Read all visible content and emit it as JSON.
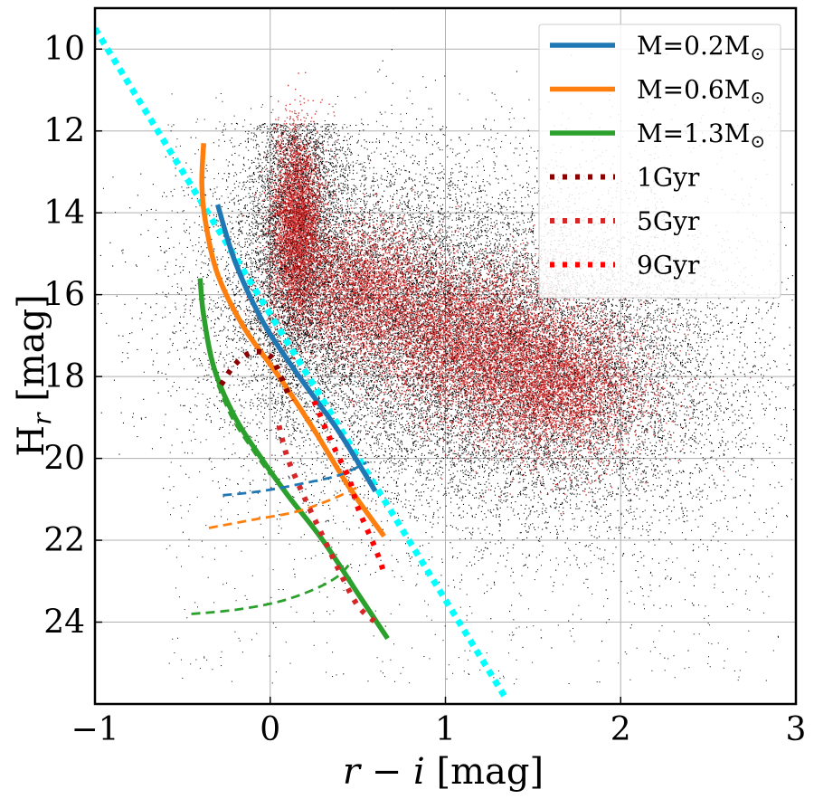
{
  "chart_data": {
    "type": "scatter",
    "title": "",
    "xlabel_main": "r − i",
    "xlabel_unit": " [mag]",
    "ylabel_main": "H",
    "ylabel_sub": "r",
    "ylabel_unit": " [mag]",
    "xlim": [
      -1,
      3
    ],
    "ylim": [
      26,
      9
    ],
    "xticks": [
      -1,
      0,
      1,
      2,
      3
    ],
    "yticks": [
      10,
      12,
      14,
      16,
      18,
      20,
      22,
      24
    ],
    "grid": true,
    "legend_position": "top-right",
    "colors": {
      "background_points": "#000000",
      "density": "#cc0000",
      "reference_line": "#00ffff",
      "m02": "#1f77b4",
      "m06": "#ff7f0e",
      "m13": "#2ca02c",
      "gyr1": "#8b0000",
      "gyr5": "#d62728",
      "gyr9": "#ff0000"
    },
    "density_cloud": {
      "description": "Dense cloud of observed objects in the colour-magnitude plane",
      "core": [
        {
          "x": 0.15,
          "y": 14.2,
          "sx": 0.08,
          "sy": 1.2,
          "weight": 0.22
        },
        {
          "x": 0.5,
          "y": 15.8,
          "sx": 0.25,
          "sy": 0.9,
          "weight": 0.2
        },
        {
          "x": 1.1,
          "y": 17.0,
          "sx": 0.35,
          "sy": 1.0,
          "weight": 0.3
        },
        {
          "x": 1.6,
          "y": 18.2,
          "sx": 0.3,
          "sy": 1.0,
          "weight": 0.28
        }
      ]
    },
    "reference_line": {
      "name": "cyan dotted",
      "x": [
        -1.0,
        1.35
      ],
      "y": [
        9.5,
        25.9
      ]
    },
    "series": [
      {
        "name": "M=0.2M⊙",
        "label_main": "M=0.2M",
        "style": "solid",
        "x": [
          -0.3,
          -0.2,
          -0.05,
          0.1,
          0.25,
          0.4,
          0.6
        ],
        "y": [
          13.8,
          15.2,
          16.6,
          17.6,
          18.5,
          19.4,
          20.8
        ]
      },
      {
        "name": "M=0.6M⊙",
        "label_main": "M=0.6M",
        "style": "solid",
        "x": [
          -0.38,
          -0.39,
          -0.37,
          -0.3,
          -0.15,
          0.05,
          0.25,
          0.45,
          0.65
        ],
        "y": [
          12.3,
          13.3,
          14.2,
          15.5,
          16.8,
          18.0,
          19.3,
          20.7,
          21.9
        ]
      },
      {
        "name": "M=1.3M⊙",
        "label_main": "M=1.3M",
        "style": "solid",
        "x": [
          -0.4,
          -0.38,
          -0.32,
          -0.2,
          -0.05,
          0.1,
          0.3,
          0.5,
          0.67
        ],
        "y": [
          15.6,
          16.5,
          17.8,
          19.0,
          20.0,
          20.9,
          22.0,
          23.3,
          24.4
        ]
      },
      {
        "name": "M=0.2M⊙ (pre-sequence)",
        "legend": false,
        "style": "dashed",
        "color_key": "m02",
        "x": [
          -0.27,
          -0.05,
          0.2,
          0.4,
          0.55
        ],
        "y": [
          20.9,
          20.8,
          20.6,
          20.4,
          20.1
        ]
      },
      {
        "name": "M=0.6M⊙ (pre-sequence)",
        "legend": false,
        "style": "dashed",
        "color_key": "m06",
        "x": [
          -0.35,
          -0.1,
          0.15,
          0.35,
          0.5
        ],
        "y": [
          21.7,
          21.5,
          21.3,
          21.0,
          20.7
        ]
      },
      {
        "name": "M=1.3M⊙ (pre-sequence)",
        "legend": false,
        "style": "dashed",
        "color_key": "m13",
        "x": [
          -0.45,
          -0.2,
          0.05,
          0.25,
          0.38,
          0.45
        ],
        "y": [
          23.8,
          23.7,
          23.5,
          23.2,
          22.9,
          22.6
        ]
      },
      {
        "name": "M=1.3M⊙ (track upper)",
        "legend": false,
        "style": "dashed",
        "color_key": "m13",
        "x": [
          -0.3,
          -0.22,
          -0.1,
          0.0
        ],
        "y": [
          18.2,
          19.0,
          19.8,
          20.4
        ]
      },
      {
        "name": "1Gyr",
        "label_main": "1Gyr",
        "style": "dotted",
        "x": [
          -0.28,
          -0.2,
          -0.1,
          0.0,
          0.05,
          0.12
        ],
        "y": [
          18.2,
          17.7,
          17.4,
          17.5,
          17.9,
          18.6
        ]
      },
      {
        "name": "5Gyr",
        "label_main": "5Gyr",
        "style": "dotted",
        "x": [
          0.05,
          0.1,
          0.2,
          0.3,
          0.4,
          0.5,
          0.6
        ],
        "y": [
          19.2,
          20.0,
          21.0,
          21.9,
          22.8,
          23.6,
          24.0
        ]
      },
      {
        "name": "9Gyr",
        "label_main": "9Gyr",
        "style": "dotted",
        "x": [
          0.25,
          0.35,
          0.45,
          0.5,
          0.6,
          0.65
        ],
        "y": [
          18.6,
          19.6,
          20.5,
          21.2,
          22.2,
          22.8
        ]
      }
    ]
  }
}
